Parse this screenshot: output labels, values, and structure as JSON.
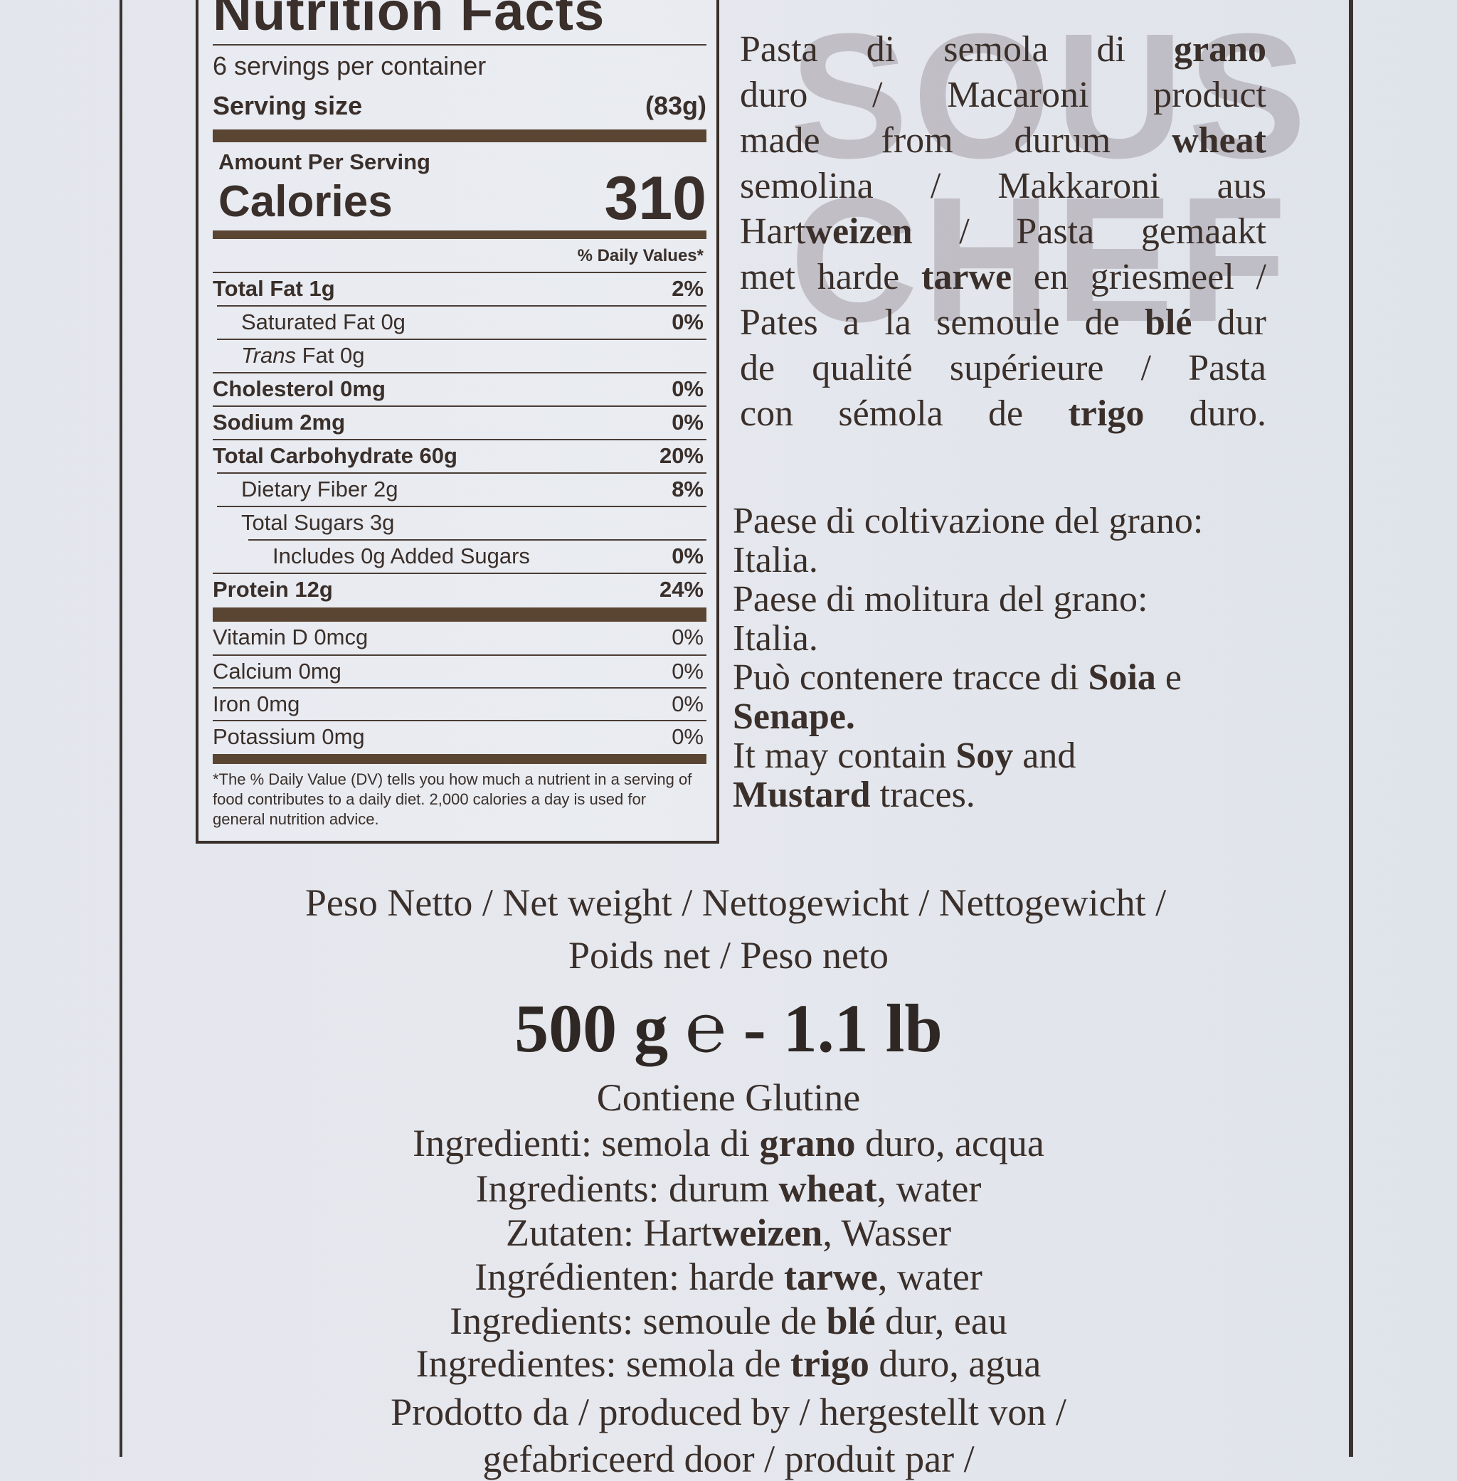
{
  "watermark": {
    "line1": "SOUS",
    "line2": "CHEF"
  },
  "nutrition": {
    "title": "Nutrition Facts",
    "servings": "6 servings per container",
    "serving_size_label": "Serving size",
    "serving_size_value": "(83g)",
    "amount_per_serving": "Amount Per Serving",
    "calories_label": "Calories",
    "calories_value": "310",
    "dv_header": "% Daily Values*",
    "rows": [
      {
        "label": "Total Fat 1g",
        "dv": "2%"
      },
      {
        "label": "Saturated Fat 0g",
        "dv": "0%"
      },
      {
        "label": "Trans Fat 0g",
        "dv": ""
      },
      {
        "label": "Cholesterol 0mg",
        "dv": "0%"
      },
      {
        "label": "Sodium 2mg",
        "dv": "0%"
      },
      {
        "label": "Total Carbohydrate 60g",
        "dv": "20%"
      },
      {
        "label": "Dietary Fiber 2g",
        "dv": "8%"
      },
      {
        "label": "Total Sugars 3g",
        "dv": ""
      },
      {
        "label": "Includes 0g Added Sugars",
        "dv": "0%"
      },
      {
        "label": "Protein 12g",
        "dv": "24%"
      }
    ],
    "vitamins": [
      {
        "label": "Vitamin D 0mcg",
        "dv": "0%"
      },
      {
        "label": "Calcium 0mg",
        "dv": "0%"
      },
      {
        "label": "Iron 0mg",
        "dv": "0%"
      },
      {
        "label": "Potassium 0mg",
        "dv": "0%"
      }
    ],
    "footnote": "*The % Daily Value (DV) tells you how much a nutrient in a serving of food contributes to a daily diet. 2,000 calories a day is used for general nutrition advice."
  },
  "description_lines": [
    "Pasta di semola di **grano**",
    "duro / Macaroni product",
    "made from durum **wheat**",
    "semolina / Makkaroni aus",
    "Hart**weizen** / Pasta gemaakt",
    "met harde **tarwe** en griesmeel /",
    "Pates a la semoule de **blé** dur",
    "de qualité supérieure / Pasta",
    "con sémola de **trigo** duro."
  ],
  "origin_lines": [
    "Paese di coltivazione del grano:",
    "Italia.",
    "Paese di molitura del grano:",
    "Italia.",
    "Può contenere tracce di **Soia** e",
    "**Senape.**",
    "It may contain **Soy** and",
    "**Mustard** traces."
  ],
  "net_weight": {
    "line1": "Peso Netto / Net weight / Nettogewicht / Nettogewicht /",
    "line2": "Poids net / Peso neto",
    "weight": "500 g ℮ - 1.1 lb"
  },
  "bottom_lines": [
    "Contiene Glutine",
    "Ingredienti: semola di **grano** duro, acqua",
    "Ingredients: durum **wheat**, water",
    "Zutaten: Hart**weizen**, Wasser",
    "Ingrédienten: harde **tarwe**, water",
    "Ingredients: semoule de **blé** dur, eau",
    "Ingredientes: semola de **trigo** duro, agua",
    "Prodotto da / produced by / hergestellt von /",
    "gefabriceerd door / produit par /"
  ]
}
